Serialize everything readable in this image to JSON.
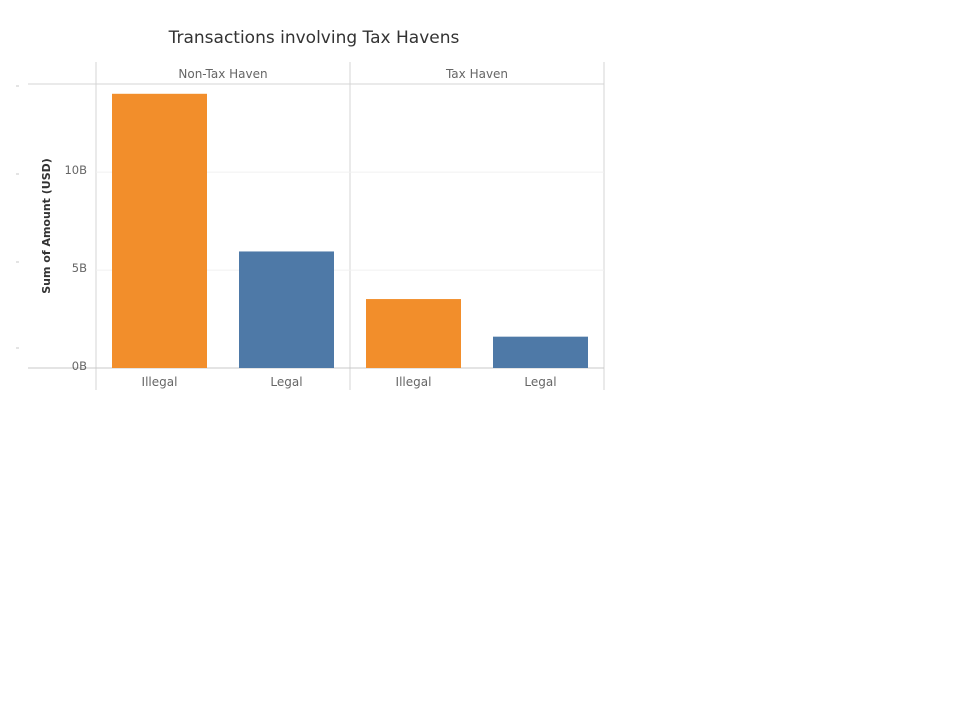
{
  "chart_data": {
    "type": "bar",
    "title": "Transactions involving Tax Havens",
    "ylabel": "Sum of Amount (USD)",
    "xlabel": "",
    "ylim": [
      0,
      14500000000
    ],
    "yticks": [
      {
        "value": 0,
        "label": "0B"
      },
      {
        "value": 5000000000,
        "label": "5B"
      },
      {
        "value": 10000000000,
        "label": "10B"
      }
    ],
    "grid": true,
    "panels": [
      {
        "name": "Non-Tax Haven",
        "categories": [
          "Illegal",
          "Legal"
        ],
        "values": [
          14000000000,
          5950000000
        ],
        "colors": [
          "#f28e2b",
          "#4e79a7"
        ]
      },
      {
        "name": "Tax Haven",
        "categories": [
          "Illegal",
          "Legal"
        ],
        "values": [
          3520000000,
          1600000000
        ],
        "colors": [
          "#f28e2b",
          "#4e79a7"
        ]
      }
    ]
  }
}
